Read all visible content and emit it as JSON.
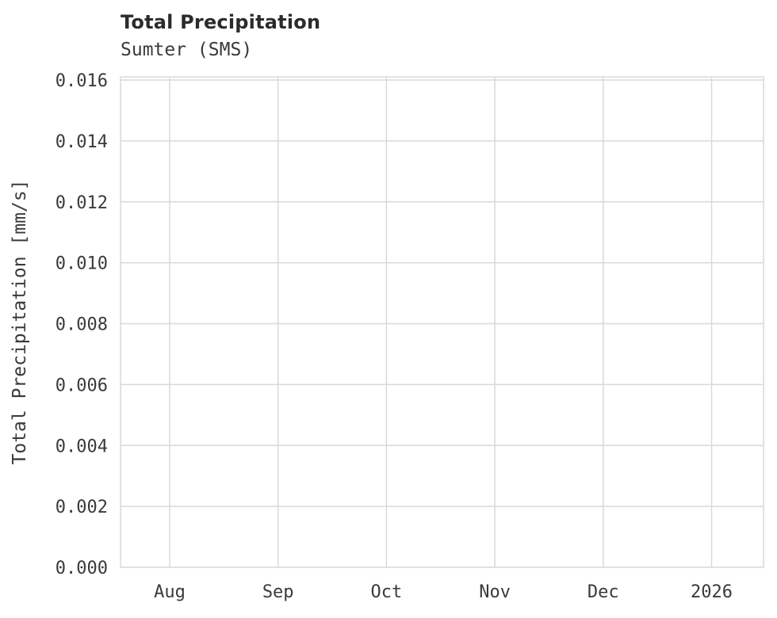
{
  "chart_data": {
    "type": "line",
    "title": "Total Precipitation",
    "subtitle": "Sumter (SMS)",
    "xlabel": "",
    "ylabel": "Total Precipitation [mm/s]",
    "x_tick_labels": [
      "Aug",
      "Sep",
      "Oct",
      "Nov",
      "Dec",
      "2026"
    ],
    "y_tick_labels": [
      "0.000",
      "0.002",
      "0.004",
      "0.006",
      "0.008",
      "0.010",
      "0.012",
      "0.014",
      "0.016"
    ],
    "ylim": [
      0.0,
      0.016
    ],
    "grid": true,
    "legend": false,
    "series": []
  },
  "colors": {
    "grid": "#d9d9d9",
    "text": "#3a3a3a",
    "title": "#2b2b2b",
    "background": "#ffffff"
  }
}
